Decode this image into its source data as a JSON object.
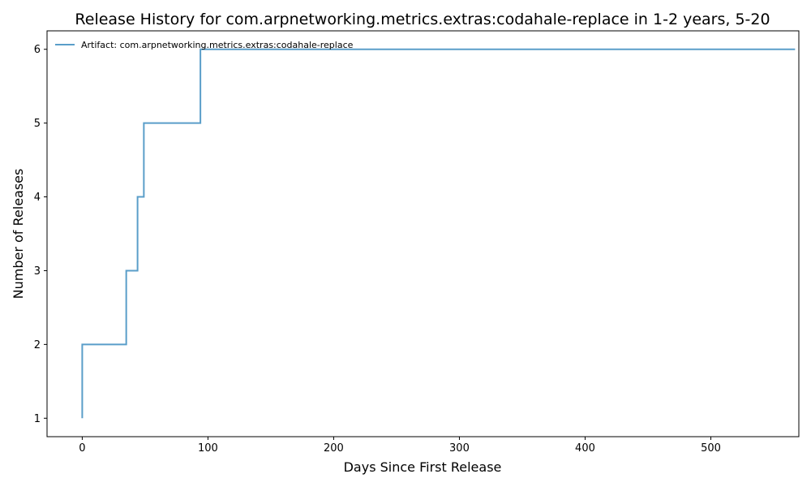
{
  "chart_data": {
    "type": "line",
    "title": "Release History for com.arpnetworking.metrics.extras:codahale-replace in 1-2 years, 5-20",
    "xlabel": "Days Since First Release",
    "ylabel": "Number of Releases",
    "xlim": [
      -28,
      570
    ],
    "ylim": [
      0.75,
      6.25
    ],
    "x_ticks": [
      0,
      100,
      200,
      300,
      400,
      500
    ],
    "y_ticks": [
      1,
      2,
      3,
      4,
      5,
      6
    ],
    "grid": false,
    "legend_position": "top-left",
    "step": "post",
    "series": [
      {
        "name": "Artifact: com.arpnetworking.metrics.extras:codahale-replace",
        "color": "#5a9ec9",
        "x": [
          0,
          0,
          35,
          44,
          49,
          94,
          567
        ],
        "y": [
          1,
          2,
          3,
          4,
          5,
          6,
          6
        ]
      }
    ]
  }
}
